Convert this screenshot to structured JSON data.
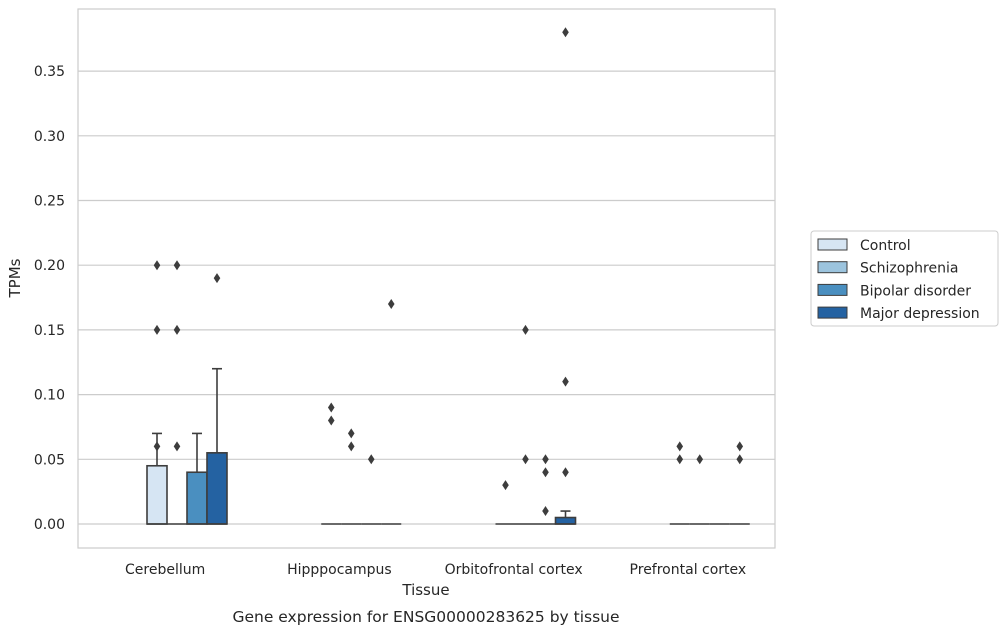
{
  "chart_data": {
    "type": "box",
    "xlabel": "Tissue",
    "ylabel": "TPMs",
    "caption": "Gene expression for ENSG00000283625 by tissue",
    "ylim": [
      -0.018,
      0.4
    ],
    "yticks": [
      0.0,
      0.05,
      0.1,
      0.15,
      0.2,
      0.25,
      0.3,
      0.35
    ],
    "ytick_labels": [
      "0.00",
      "0.05",
      "0.10",
      "0.15",
      "0.20",
      "0.25",
      "0.30",
      "0.35"
    ],
    "grid": true,
    "legend_position": "right",
    "categories": [
      "Cerebellum",
      "Hipppocampus",
      "Orbitofrontal cortex",
      "Prefrontal cortex"
    ],
    "series": [
      {
        "name": "Control",
        "color": "#d6e5f3",
        "boxes": [
          {
            "q1": 0,
            "median": 0,
            "q3": 0.045,
            "whisker_low": 0,
            "whisker_high": 0.07,
            "outliers": [
              0.2,
              0.15,
              0.06
            ]
          },
          {
            "q1": 0,
            "median": 0,
            "q3": 0,
            "whisker_low": 0,
            "whisker_high": 0,
            "outliers": [
              0.09,
              0.08
            ]
          },
          {
            "q1": 0,
            "median": 0,
            "q3": 0,
            "whisker_low": 0,
            "whisker_high": 0,
            "outliers": [
              0.03
            ]
          },
          {
            "q1": 0,
            "median": 0,
            "q3": 0,
            "whisker_low": 0,
            "whisker_high": 0,
            "outliers": [
              0.06,
              0.05
            ]
          }
        ]
      },
      {
        "name": "Schizophrenia",
        "color": "#9cc4de",
        "boxes": [
          {
            "q1": 0,
            "median": 0,
            "q3": 0,
            "whisker_low": 0,
            "whisker_high": 0,
            "outliers": [
              0.2,
              0.15,
              0.06
            ]
          },
          {
            "q1": 0,
            "median": 0,
            "q3": 0,
            "whisker_low": 0,
            "whisker_high": 0,
            "outliers": [
              0.07,
              0.06
            ]
          },
          {
            "q1": 0,
            "median": 0,
            "q3": 0,
            "whisker_low": 0,
            "whisker_high": 0,
            "outliers": [
              0.15,
              0.05
            ]
          },
          {
            "q1": 0,
            "median": 0,
            "q3": 0,
            "whisker_low": 0,
            "whisker_high": 0,
            "outliers": [
              0.05
            ]
          }
        ]
      },
      {
        "name": "Bipolar disorder",
        "color": "#4a8fc0",
        "boxes": [
          {
            "q1": 0,
            "median": 0,
            "q3": 0.04,
            "whisker_low": 0,
            "whisker_high": 0.07,
            "outliers": []
          },
          {
            "q1": 0,
            "median": 0,
            "q3": 0,
            "whisker_low": 0,
            "whisker_high": 0,
            "outliers": [
              0.05
            ]
          },
          {
            "q1": 0,
            "median": 0,
            "q3": 0,
            "whisker_low": 0,
            "whisker_high": 0,
            "outliers": [
              0.05,
              0.04,
              0.01
            ]
          },
          {
            "q1": 0,
            "median": 0,
            "q3": 0,
            "whisker_low": 0,
            "whisker_high": 0,
            "outliers": []
          }
        ]
      },
      {
        "name": "Major depression",
        "color": "#2462a2",
        "boxes": [
          {
            "q1": 0,
            "median": 0,
            "q3": 0.055,
            "whisker_low": 0,
            "whisker_high": 0.12,
            "outliers": [
              0.19
            ]
          },
          {
            "q1": 0,
            "median": 0,
            "q3": 0,
            "whisker_low": 0,
            "whisker_high": 0,
            "outliers": [
              0.17
            ]
          },
          {
            "q1": 0,
            "median": 0,
            "q3": 0.005,
            "whisker_low": 0,
            "whisker_high": 0.01,
            "outliers": [
              0.38,
              0.11,
              0.04
            ]
          },
          {
            "q1": 0,
            "median": 0,
            "q3": 0,
            "whisker_low": 0,
            "whisker_high": 0,
            "outliers": [
              0.06,
              0.05
            ]
          }
        ]
      }
    ]
  }
}
